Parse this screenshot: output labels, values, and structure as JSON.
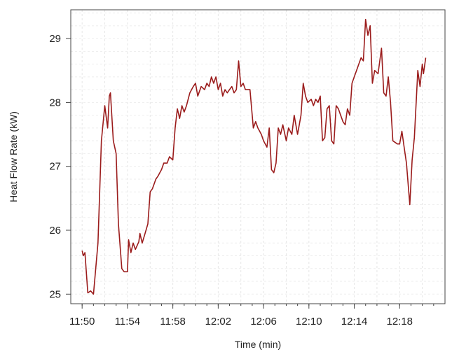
{
  "chart_data": {
    "type": "line",
    "title": "",
    "xlabel": "Time (min)",
    "ylabel": "Heat Flow Rate (kW)",
    "x_range": [
      "11:49:00",
      "12:22:00"
    ],
    "ylim": [
      24.85,
      29.45
    ],
    "x_ticks": [
      "11:50",
      "11:54",
      "11:58",
      "12:02",
      "12:06",
      "12:10",
      "12:14",
      "12:18"
    ],
    "y_ticks": [
      "25",
      "26",
      "27",
      "28",
      "29"
    ],
    "grid": true,
    "line_color": "#9b1c1c",
    "series": [
      {
        "points": [
          [
            "11:50:00",
            25.68
          ],
          [
            "11:50:06",
            25.6
          ],
          [
            "11:50:15",
            25.65
          ],
          [
            "11:50:30",
            25.02
          ],
          [
            "11:50:45",
            25.05
          ],
          [
            "11:51:00",
            25.0
          ],
          [
            "11:51:12",
            25.4
          ],
          [
            "11:51:24",
            25.8
          ],
          [
            "11:51:42",
            27.4
          ],
          [
            "11:52:00",
            27.95
          ],
          [
            "11:52:15",
            27.6
          ],
          [
            "11:52:24",
            28.1
          ],
          [
            "11:52:30",
            28.15
          ],
          [
            "11:52:45",
            27.4
          ],
          [
            "11:53:00",
            27.2
          ],
          [
            "11:53:12",
            26.1
          ],
          [
            "11:53:30",
            25.4
          ],
          [
            "11:53:42",
            25.35
          ],
          [
            "11:54:00",
            25.35
          ],
          [
            "11:54:06",
            25.85
          ],
          [
            "11:54:18",
            25.65
          ],
          [
            "11:54:30",
            25.8
          ],
          [
            "11:54:42",
            25.7
          ],
          [
            "11:55:00",
            25.82
          ],
          [
            "11:55:06",
            25.95
          ],
          [
            "11:55:18",
            25.8
          ],
          [
            "11:55:30",
            25.92
          ],
          [
            "11:55:48",
            26.1
          ],
          [
            "11:56:00",
            26.6
          ],
          [
            "11:56:12",
            26.65
          ],
          [
            "11:56:30",
            26.8
          ],
          [
            "11:56:42",
            26.85
          ],
          [
            "11:57:00",
            26.95
          ],
          [
            "11:57:12",
            27.05
          ],
          [
            "11:57:30",
            27.05
          ],
          [
            "11:57:42",
            27.15
          ],
          [
            "11:58:00",
            27.1
          ],
          [
            "11:58:12",
            27.6
          ],
          [
            "11:58:24",
            27.9
          ],
          [
            "11:58:36",
            27.75
          ],
          [
            "11:58:48",
            27.95
          ],
          [
            "11:59:00",
            27.85
          ],
          [
            "11:59:12",
            27.95
          ],
          [
            "11:59:30",
            28.15
          ],
          [
            "11:59:48",
            28.25
          ],
          [
            "12:00:00",
            28.3
          ],
          [
            "12:00:12",
            28.1
          ],
          [
            "12:00:30",
            28.25
          ],
          [
            "12:00:48",
            28.2
          ],
          [
            "12:01:00",
            28.3
          ],
          [
            "12:01:12",
            28.25
          ],
          [
            "12:01:24",
            28.4
          ],
          [
            "12:01:36",
            28.3
          ],
          [
            "12:01:48",
            28.4
          ],
          [
            "12:02:00",
            28.2
          ],
          [
            "12:02:12",
            28.3
          ],
          [
            "12:02:24",
            28.1
          ],
          [
            "12:02:36",
            28.2
          ],
          [
            "12:02:48",
            28.15
          ],
          [
            "12:03:00",
            28.2
          ],
          [
            "12:03:12",
            28.25
          ],
          [
            "12:03:24",
            28.15
          ],
          [
            "12:03:36",
            28.2
          ],
          [
            "12:03:48",
            28.65
          ],
          [
            "12:04:00",
            28.25
          ],
          [
            "12:04:12",
            28.3
          ],
          [
            "12:04:24",
            28.2
          ],
          [
            "12:04:48",
            28.2
          ],
          [
            "12:05:06",
            27.6
          ],
          [
            "12:05:18",
            27.7
          ],
          [
            "12:05:30",
            27.6
          ],
          [
            "12:05:48",
            27.5
          ],
          [
            "12:06:00",
            27.4
          ],
          [
            "12:06:18",
            27.3
          ],
          [
            "12:06:30",
            27.6
          ],
          [
            "12:06:42",
            26.95
          ],
          [
            "12:06:54",
            26.9
          ],
          [
            "12:07:06",
            27.05
          ],
          [
            "12:07:18",
            27.6
          ],
          [
            "12:07:30",
            27.5
          ],
          [
            "12:07:42",
            27.65
          ],
          [
            "12:08:00",
            27.4
          ],
          [
            "12:08:12",
            27.6
          ],
          [
            "12:08:30",
            27.5
          ],
          [
            "12:08:42",
            27.8
          ],
          [
            "12:09:00",
            27.5
          ],
          [
            "12:09:18",
            27.8
          ],
          [
            "12:09:30",
            28.3
          ],
          [
            "12:09:42",
            28.1
          ],
          [
            "12:09:54",
            28.0
          ],
          [
            "12:10:12",
            28.05
          ],
          [
            "12:10:24",
            27.95
          ],
          [
            "12:10:36",
            28.05
          ],
          [
            "12:10:48",
            28.0
          ],
          [
            "12:11:00",
            28.1
          ],
          [
            "12:11:12",
            27.4
          ],
          [
            "12:11:24",
            27.45
          ],
          [
            "12:11:36",
            27.9
          ],
          [
            "12:11:48",
            27.95
          ],
          [
            "12:12:00",
            27.4
          ],
          [
            "12:12:12",
            27.35
          ],
          [
            "12:12:24",
            27.95
          ],
          [
            "12:12:36",
            27.9
          ],
          [
            "12:12:48",
            27.8
          ],
          [
            "12:13:00",
            27.7
          ],
          [
            "12:13:12",
            27.65
          ],
          [
            "12:13:24",
            27.9
          ],
          [
            "12:13:36",
            27.8
          ],
          [
            "12:13:48",
            28.3
          ],
          [
            "12:14:00",
            28.4
          ],
          [
            "12:14:12",
            28.5
          ],
          [
            "12:14:24",
            28.6
          ],
          [
            "12:14:36",
            28.7
          ],
          [
            "12:14:48",
            28.65
          ],
          [
            "12:15:00",
            29.3
          ],
          [
            "12:15:12",
            29.05
          ],
          [
            "12:15:24",
            29.2
          ],
          [
            "12:15:36",
            28.3
          ],
          [
            "12:15:48",
            28.5
          ],
          [
            "12:16:06",
            28.45
          ],
          [
            "12:16:24",
            28.85
          ],
          [
            "12:16:36",
            28.15
          ],
          [
            "12:16:48",
            28.1
          ],
          [
            "12:17:00",
            28.4
          ],
          [
            "12:17:12",
            28.0
          ],
          [
            "12:17:24",
            27.4
          ],
          [
            "12:17:48",
            27.35
          ],
          [
            "12:18:00",
            27.35
          ],
          [
            "12:18:12",
            27.55
          ],
          [
            "12:18:24",
            27.3
          ],
          [
            "12:18:36",
            27.05
          ],
          [
            "12:18:54",
            26.4
          ],
          [
            "12:19:06",
            27.1
          ],
          [
            "12:19:18",
            27.45
          ],
          [
            "12:19:36",
            28.5
          ],
          [
            "12:19:48",
            28.25
          ],
          [
            "12:20:00",
            28.6
          ],
          [
            "12:20:06",
            28.45
          ],
          [
            "12:20:18",
            28.7
          ]
        ]
      }
    ]
  }
}
